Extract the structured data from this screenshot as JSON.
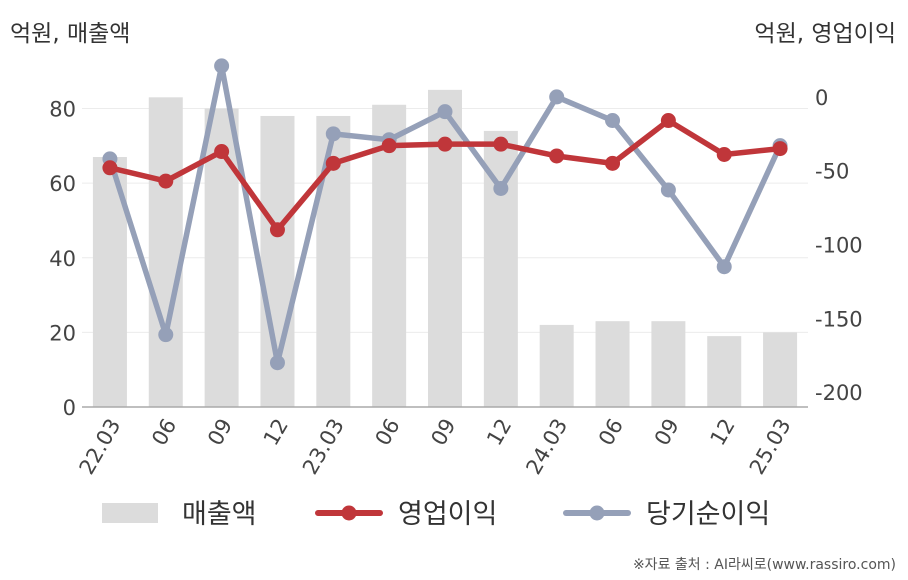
{
  "left_axis_unit": "억원, 매출액",
  "right_axis_unit": "억원, 영업이익",
  "source": "※자료 출처 : AI라씨로(www.rassiro.com)",
  "chart_data": {
    "type": "bar+line",
    "categories": [
      "22.03",
      "06",
      "09",
      "12",
      "23.03",
      "06",
      "09",
      "12",
      "24.03",
      "06",
      "09",
      "12",
      "25.03"
    ],
    "left_axis": {
      "ylim": [
        0,
        93
      ],
      "ticks": [
        0,
        20,
        40,
        60,
        80
      ]
    },
    "right_axis": {
      "ylim": [
        -210,
        25
      ],
      "ticks": [
        0,
        -50,
        -100,
        -150,
        -200
      ]
    },
    "grid": true,
    "legend_position": "bottom",
    "series": [
      {
        "name": "매출액",
        "type": "bar",
        "axis": "left",
        "color": "#dcdcdc",
        "values": [
          67,
          83,
          80,
          78,
          78,
          81,
          85,
          74,
          22,
          23,
          23,
          19,
          20
        ]
      },
      {
        "name": "영업이익",
        "type": "line",
        "axis": "right",
        "color": "#c0363a",
        "values": [
          -48,
          -57,
          -37,
          -90,
          -45,
          -33,
          -32,
          -32,
          -40,
          -45,
          -16,
          -39,
          -35
        ]
      },
      {
        "name": "당기순이익",
        "type": "line",
        "axis": "right",
        "color": "#95a0b8",
        "values": [
          -42,
          -161,
          21,
          -180,
          -25,
          -29,
          -10,
          -62,
          0,
          -16,
          -63,
          -115,
          -33
        ]
      }
    ]
  }
}
